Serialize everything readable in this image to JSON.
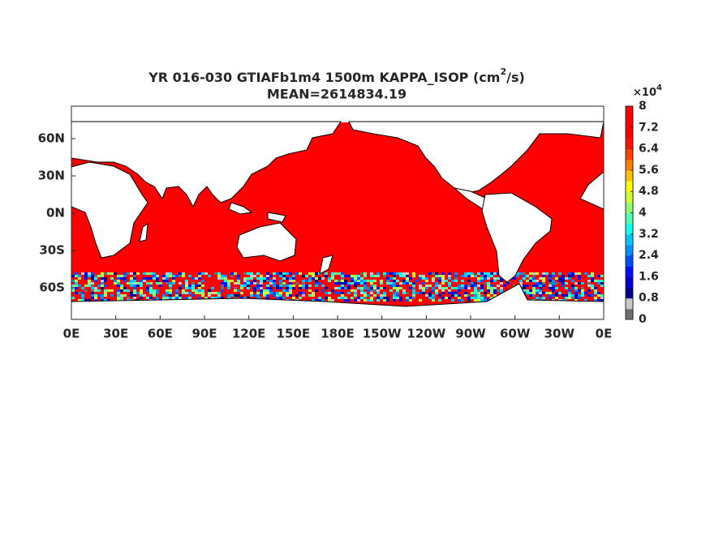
{
  "title": {
    "line1_prefix": "YR 016-030 GTIAFb1m4 1500m KAPPA_ISOP (cm",
    "line1_sup": "2",
    "line1_suffix": "/s)",
    "line2": "MEAN=2614834.19"
  },
  "map": {
    "lon_ticks": [
      "0E",
      "30E",
      "60E",
      "90E",
      "120E",
      "150E",
      "180E",
      "150W",
      "120W",
      "90W",
      "60W",
      "30W",
      "0E"
    ],
    "lat_ticks": [
      "60N",
      "30N",
      "0N",
      "30S",
      "60S"
    ]
  },
  "colorbar": {
    "exponent_base": "×10",
    "exponent": "4",
    "lim": [
      0,
      8
    ],
    "ticks": [
      0,
      0.8,
      1.6,
      2.4,
      3.2,
      4,
      4.8,
      5.6,
      6.4,
      7.2,
      8
    ],
    "colors": [
      "#6e6e6e",
      "#c8c8c8",
      "#00008f",
      "#0000cf",
      "#0010ff",
      "#0050ff",
      "#0090ff",
      "#00c8ff",
      "#10ffef",
      "#50ffaf",
      "#90ff6f",
      "#cfff30",
      "#ffff00",
      "#ffc000",
      "#ff8000",
      "#ff4000",
      "#ff1000",
      "#ff0000",
      "#ff0000",
      "#ff0000"
    ]
  }
}
